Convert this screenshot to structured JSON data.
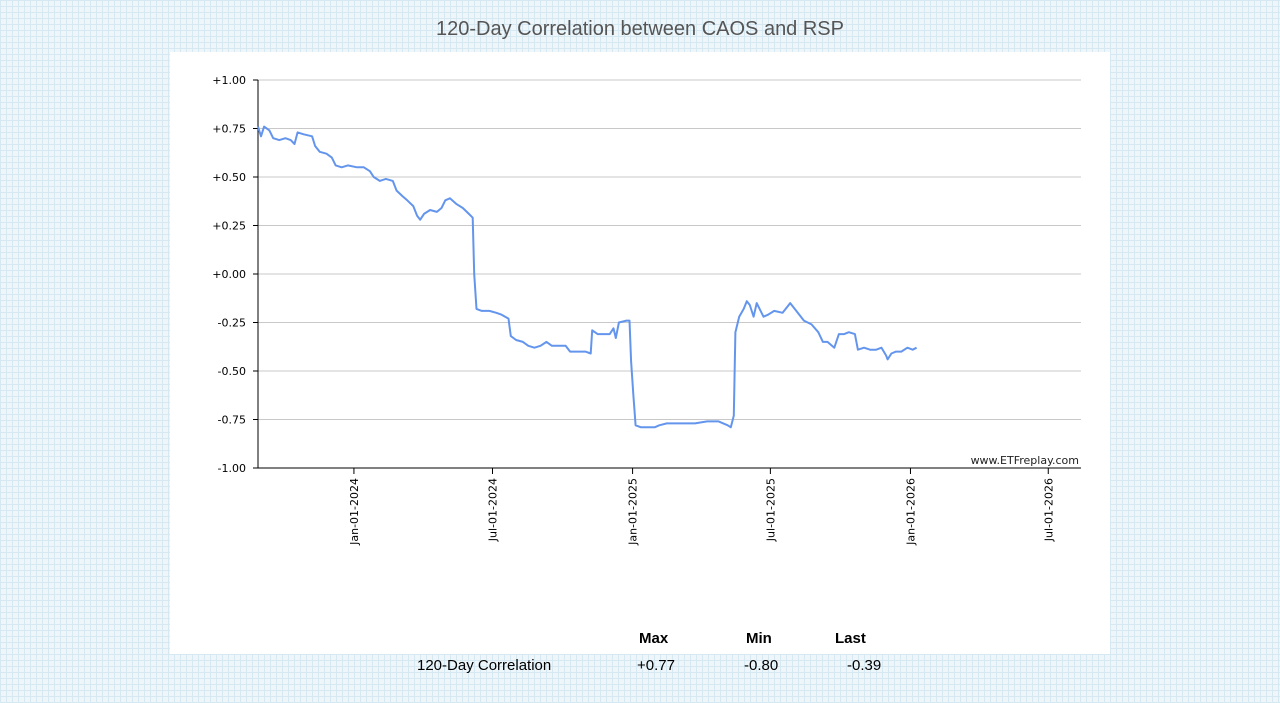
{
  "page": {
    "title": "120-Day Correlation between CAOS and RSP",
    "watermark": "www.ETFreplay.com"
  },
  "summary": {
    "headers": [
      "Max",
      "Min",
      "Last"
    ],
    "row_label": "120-Day Correlation",
    "values": [
      "+0.77",
      "-0.80",
      "-0.39"
    ]
  },
  "chart_data": {
    "type": "line",
    "title": "120-Day Correlation between CAOS and RSP",
    "xlabel": "",
    "ylabel": "",
    "ylim": [
      -1.0,
      1.0
    ],
    "yticks": [
      1.0,
      0.75,
      0.5,
      0.25,
      0.0,
      -0.25,
      -0.5,
      -0.75,
      -1.0
    ],
    "ytick_labels": [
      "+1.00",
      "+0.75",
      "+0.50",
      "+0.25",
      "+0.00",
      "-0.25",
      "-0.50",
      "-0.75",
      "-1.00"
    ],
    "xlim": [
      "2023-08-28",
      "2026-08-13"
    ],
    "xticks": [
      "2024-01-01",
      "2024-07-01",
      "2025-01-01",
      "2025-07-01",
      "2026-01-01",
      "2026-07-01"
    ],
    "xtick_labels": [
      "Jan-01-2024",
      "Jul-01-2024",
      "Jan-01-2025",
      "Jul-01-2025",
      "Jan-01-2026",
      "Jul-01-2026"
    ],
    "grid": true,
    "line_color": "#6495ED",
    "series": [
      {
        "points": [
          [
            "2023-08-28",
            0.76
          ],
          [
            "2023-09-01",
            0.71
          ],
          [
            "2023-09-05",
            0.76
          ],
          [
            "2023-09-12",
            0.74
          ],
          [
            "2023-09-17",
            0.7
          ],
          [
            "2023-09-25",
            0.69
          ],
          [
            "2023-10-03",
            0.7
          ],
          [
            "2023-10-10",
            0.69
          ],
          [
            "2023-10-15",
            0.67
          ],
          [
            "2023-10-19",
            0.73
          ],
          [
            "2023-10-27",
            0.72
          ],
          [
            "2023-11-07",
            0.71
          ],
          [
            "2023-11-11",
            0.66
          ],
          [
            "2023-11-17",
            0.63
          ],
          [
            "2023-11-26",
            0.62
          ],
          [
            "2023-12-03",
            0.6
          ],
          [
            "2023-12-08",
            0.56
          ],
          [
            "2023-12-16",
            0.55
          ],
          [
            "2023-12-24",
            0.56
          ],
          [
            "2024-01-05",
            0.55
          ],
          [
            "2024-01-14",
            0.55
          ],
          [
            "2024-01-22",
            0.53
          ],
          [
            "2024-01-27",
            0.5
          ],
          [
            "2024-02-04",
            0.48
          ],
          [
            "2024-02-12",
            0.49
          ],
          [
            "2024-02-21",
            0.48
          ],
          [
            "2024-02-26",
            0.43
          ],
          [
            "2024-03-05",
            0.4
          ],
          [
            "2024-03-11",
            0.38
          ],
          [
            "2024-03-19",
            0.35
          ],
          [
            "2024-03-24",
            0.3
          ],
          [
            "2024-03-28",
            0.28
          ],
          [
            "2024-04-02",
            0.31
          ],
          [
            "2024-04-10",
            0.33
          ],
          [
            "2024-04-19",
            0.32
          ],
          [
            "2024-04-25",
            0.34
          ],
          [
            "2024-04-30",
            0.38
          ],
          [
            "2024-05-06",
            0.39
          ],
          [
            "2024-05-15",
            0.36
          ],
          [
            "2024-05-23",
            0.34
          ],
          [
            "2024-05-31",
            0.31
          ],
          [
            "2024-06-05",
            0.29
          ],
          [
            "2024-06-07",
            0.0
          ],
          [
            "2024-06-10",
            -0.18
          ],
          [
            "2024-06-17",
            -0.19
          ],
          [
            "2024-06-27",
            -0.19
          ],
          [
            "2024-07-06",
            -0.2
          ],
          [
            "2024-07-13",
            -0.21
          ],
          [
            "2024-07-22",
            -0.23
          ],
          [
            "2024-07-25",
            -0.32
          ],
          [
            "2024-08-01",
            -0.34
          ],
          [
            "2024-08-10",
            -0.35
          ],
          [
            "2024-08-17",
            -0.37
          ],
          [
            "2024-08-25",
            -0.38
          ],
          [
            "2024-09-02",
            -0.37
          ],
          [
            "2024-09-10",
            -0.35
          ],
          [
            "2024-09-17",
            -0.37
          ],
          [
            "2024-09-25",
            -0.37
          ],
          [
            "2024-10-05",
            -0.37
          ],
          [
            "2024-10-11",
            -0.4
          ],
          [
            "2024-10-20",
            -0.4
          ],
          [
            "2024-10-31",
            -0.4
          ],
          [
            "2024-11-07",
            -0.41
          ],
          [
            "2024-11-09",
            -0.29
          ],
          [
            "2024-11-16",
            -0.31
          ],
          [
            "2024-11-23",
            -0.31
          ],
          [
            "2024-12-02",
            -0.31
          ],
          [
            "2024-12-07",
            -0.28
          ],
          [
            "2024-12-10",
            -0.33
          ],
          [
            "2024-12-14",
            -0.25
          ],
          [
            "2024-12-24",
            -0.24
          ],
          [
            "2024-12-28",
            -0.24
          ],
          [
            "2024-12-30",
            -0.45
          ],
          [
            "2025-01-02",
            -0.62
          ],
          [
            "2025-01-05",
            -0.78
          ],
          [
            "2025-01-12",
            -0.79
          ],
          [
            "2025-01-22",
            -0.79
          ],
          [
            "2025-01-30",
            -0.79
          ],
          [
            "2025-02-05",
            -0.78
          ],
          [
            "2025-02-15",
            -0.77
          ],
          [
            "2025-03-03",
            -0.77
          ],
          [
            "2025-03-24",
            -0.77
          ],
          [
            "2025-04-09",
            -0.76
          ],
          [
            "2025-04-24",
            -0.76
          ],
          [
            "2025-05-06",
            -0.78
          ],
          [
            "2025-05-10",
            -0.79
          ],
          [
            "2025-05-14",
            -0.73
          ],
          [
            "2025-05-16",
            -0.3
          ],
          [
            "2025-05-21",
            -0.22
          ],
          [
            "2025-05-27",
            -0.18
          ],
          [
            "2025-05-31",
            -0.14
          ],
          [
            "2025-06-04",
            -0.16
          ],
          [
            "2025-06-09",
            -0.22
          ],
          [
            "2025-06-13",
            -0.15
          ],
          [
            "2025-06-22",
            -0.22
          ],
          [
            "2025-06-28",
            -0.21
          ],
          [
            "2025-07-06",
            -0.19
          ],
          [
            "2025-07-17",
            -0.2
          ],
          [
            "2025-07-27",
            -0.15
          ],
          [
            "2025-08-04",
            -0.19
          ],
          [
            "2025-08-14",
            -0.24
          ],
          [
            "2025-08-24",
            -0.26
          ],
          [
            "2025-09-02",
            -0.3
          ],
          [
            "2025-09-08",
            -0.35
          ],
          [
            "2025-09-14",
            -0.35
          ],
          [
            "2025-09-23",
            -0.38
          ],
          [
            "2025-09-29",
            -0.31
          ],
          [
            "2025-10-06",
            -0.31
          ],
          [
            "2025-10-12",
            -0.3
          ],
          [
            "2025-10-20",
            -0.31
          ],
          [
            "2025-10-24",
            -0.39
          ],
          [
            "2025-11-01",
            -0.38
          ],
          [
            "2025-11-09",
            -0.39
          ],
          [
            "2025-11-17",
            -0.39
          ],
          [
            "2025-11-24",
            -0.38
          ],
          [
            "2025-11-30",
            -0.42
          ],
          [
            "2025-12-02",
            -0.44
          ],
          [
            "2025-12-07",
            -0.41
          ],
          [
            "2025-12-13",
            -0.4
          ],
          [
            "2025-12-20",
            -0.4
          ],
          [
            "2025-12-28",
            -0.38
          ],
          [
            "2026-01-04",
            -0.39
          ],
          [
            "2026-01-09",
            -0.38
          ]
        ]
      }
    ]
  }
}
